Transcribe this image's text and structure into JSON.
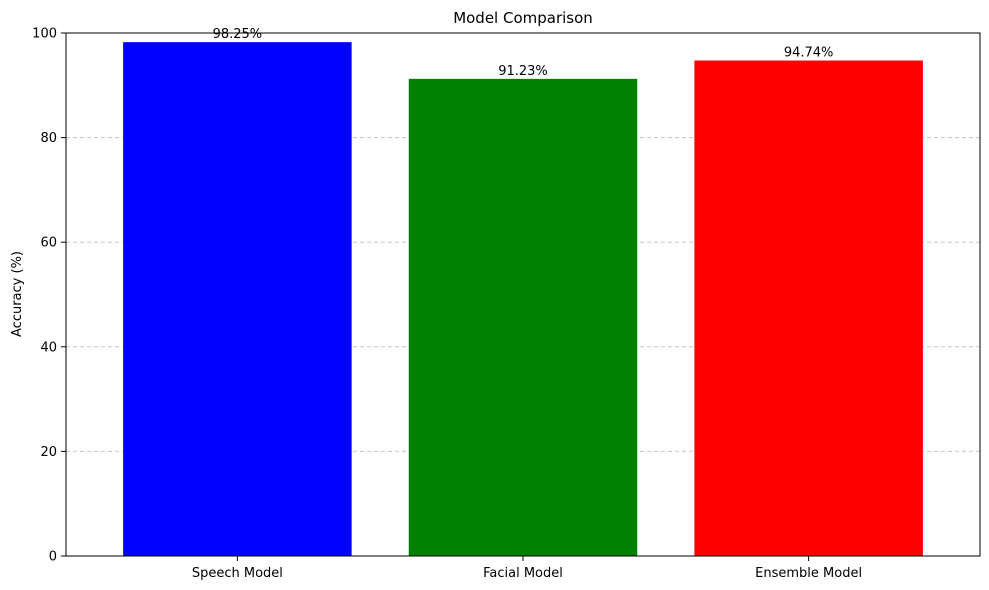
{
  "chart_data": {
    "type": "bar",
    "title": "Model Comparison",
    "xlabel": "",
    "ylabel": "Accuracy (%)",
    "categories": [
      "Speech Model",
      "Facial Model",
      "Ensemble Model"
    ],
    "values": [
      98.25,
      91.23,
      94.74
    ],
    "value_labels": [
      "98.25%",
      "91.23%",
      "94.74%"
    ],
    "colors": [
      "#0000ff",
      "#008000",
      "#ff0000"
    ],
    "ylim": [
      0,
      100
    ],
    "yticks": [
      0,
      20,
      40,
      60,
      80,
      100
    ],
    "grid": "y-dashed",
    "legend": "none"
  }
}
